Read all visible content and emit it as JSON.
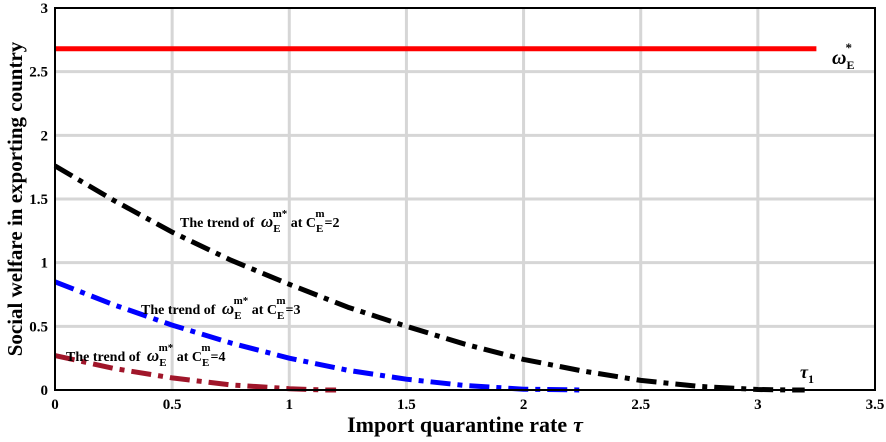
{
  "chart_data": {
    "type": "line",
    "xlabel": "Import quarantine rate",
    "xlabel_symbol": "τ",
    "ylabel": "Social welfare in exporting country",
    "xlim": [
      0,
      3.5
    ],
    "ylim": [
      0,
      3
    ],
    "x_ticks": [
      "0",
      "0.5",
      "1",
      "1.5",
      "2",
      "2.5",
      "3",
      "3.5"
    ],
    "y_ticks": [
      "0",
      "0.5",
      "1",
      "1.5",
      "2",
      "2.5",
      "3"
    ],
    "grid": true,
    "series": [
      {
        "color": "#ff0000",
        "style": "solid",
        "x": [
          0,
          3.25
        ],
        "y": [
          2.68,
          2.68
        ]
      },
      {
        "color": "#000000",
        "style": "dashdot",
        "x": [
          0,
          0.25,
          0.5,
          0.75,
          1.0,
          1.25,
          1.5,
          1.75,
          2.0,
          2.25,
          2.5,
          2.75,
          3.0,
          3.15,
          3.2
        ],
        "y": [
          1.76,
          1.49,
          1.24,
          1.02,
          0.83,
          0.65,
          0.5,
          0.36,
          0.24,
          0.15,
          0.075,
          0.028,
          0.004,
          0.0,
          0.0
        ]
      },
      {
        "color": "#0000ff",
        "style": "dashdot",
        "x": [
          0,
          0.25,
          0.5,
          0.75,
          1.0,
          1.25,
          1.5,
          1.75,
          2.0,
          2.25
        ],
        "y": [
          0.85,
          0.67,
          0.51,
          0.37,
          0.25,
          0.155,
          0.085,
          0.035,
          0.006,
          0.0
        ]
      },
      {
        "color": "#a0162a",
        "style": "dashdot",
        "x": [
          0,
          0.25,
          0.5,
          0.75,
          1.0,
          1.15,
          1.2
        ],
        "y": [
          0.27,
          0.17,
          0.095,
          0.04,
          0.01,
          0.0,
          0.0
        ]
      }
    ],
    "annotations": {
      "omega_label": {
        "symbol": "ω",
        "sub": "E",
        "sup": "*"
      },
      "tau_label": {
        "symbol": "τ",
        "sub": "1"
      },
      "trend_prefix": "The trend of",
      "trend_symbol": "ω",
      "trend_sub": "E",
      "trend_sup": "m*",
      "trend_at": "at",
      "trend_c": "C",
      "trend_c_sub": "E",
      "trend_c_sup": "m",
      "trend_values": [
        "=2",
        "=3",
        "=4"
      ]
    }
  }
}
